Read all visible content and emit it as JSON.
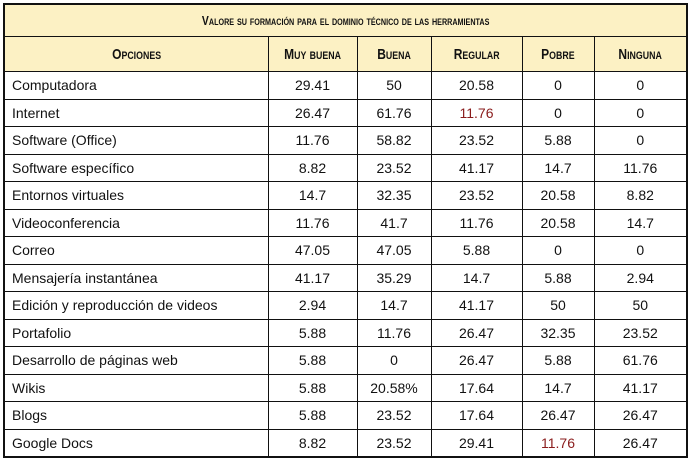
{
  "title": "Valore su formación para el dominio técnico de las herramientas",
  "columns": [
    "Opciones",
    "Muy buena",
    "Buena",
    "Regular",
    "Pobre",
    "Ninguna"
  ],
  "rows": [
    [
      "Computadora",
      "29.41",
      "50",
      "20.58",
      "0",
      "0"
    ],
    [
      "Internet",
      "26.47",
      "61.76",
      "11.76",
      "0",
      "0"
    ],
    [
      "Software (Office)",
      "11.76",
      "58.82",
      "23.52",
      "5.88",
      "0"
    ],
    [
      "Software específico",
      "8.82",
      "23.52",
      "41.17",
      "14.7",
      "11.76"
    ],
    [
      "Entornos virtuales",
      "14.7",
      "32.35",
      "23.52",
      "20.58",
      "8.82"
    ],
    [
      "Videoconferencia",
      "11.76",
      "41.7",
      "11.76",
      "20.58",
      "14.7"
    ],
    [
      "Correo",
      "47.05",
      "47.05",
      "5.88",
      "0",
      "0"
    ],
    [
      "Mensajería instantánea",
      "41.17",
      "35.29",
      "14.7",
      "5.88",
      "2.94"
    ],
    [
      "Edición y reproducción de videos",
      "2.94",
      "14.7",
      "41.17",
      "50",
      "50"
    ],
    [
      "Portafolio",
      "5.88",
      "11.76",
      "26.47",
      "32.35",
      "23.52"
    ],
    [
      "Desarrollo de páginas web",
      "5.88",
      "0",
      "26.47",
      "5.88",
      "61.76"
    ],
    [
      "Wikis",
      "5.88",
      "20.58%",
      "17.64",
      "14.7",
      "41.17"
    ],
    [
      "Blogs",
      "5.88",
      "23.52",
      "17.64",
      "26.47",
      "26.47"
    ],
    [
      "Google Docs",
      "8.82",
      "23.52",
      "29.41",
      "11.76",
      "26.47"
    ]
  ],
  "colors": {
    "header_bg": "#fcf1c4",
    "border": "#111111"
  }
}
